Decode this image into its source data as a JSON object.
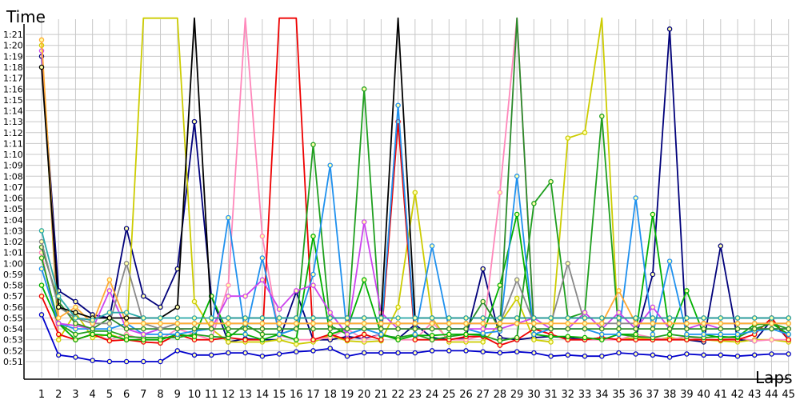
{
  "chart_data": {
    "type": "line",
    "title": "",
    "xlabel": "Laps",
    "ylabel": "Time",
    "grid": true,
    "legend": "none",
    "ylim_seconds": [
      50,
      82.5
    ],
    "x": [
      1,
      2,
      3,
      4,
      5,
      6,
      7,
      8,
      9,
      10,
      11,
      12,
      13,
      14,
      15,
      16,
      17,
      18,
      19,
      20,
      21,
      22,
      23,
      24,
      25,
      26,
      27,
      28,
      29,
      30,
      31,
      32,
      33,
      34,
      35,
      36,
      37,
      38,
      39,
      40,
      41,
      42,
      43,
      44,
      45
    ],
    "x_tick_labels": [
      "1",
      "2",
      "3",
      "4",
      "5",
      "6",
      "7",
      "8",
      "9",
      "10",
      "11",
      "12",
      "13",
      "14",
      "15",
      "16",
      "17",
      "18",
      "19",
      "20",
      "21",
      "22",
      "23",
      "24",
      "25",
      "26",
      "27",
      "28",
      "29",
      "30",
      "31",
      "32",
      "33",
      "34",
      "35",
      "36",
      "37",
      "38",
      "39",
      "40",
      "41",
      "42",
      "43",
      "44",
      "45"
    ],
    "y_tick_labels": [
      "0:51",
      "0:52",
      "0:53",
      "0:54",
      "0:55",
      "0:56",
      "0:57",
      "0:58",
      "0:59",
      "1:00",
      "1:01",
      "1:02",
      "1:03",
      "1:04",
      "1:05",
      "1:06",
      "1:07",
      "1:08",
      "1:09",
      "1:10",
      "1:11",
      "1:12",
      "1:13",
      "1:14",
      "1:15",
      "1:16",
      "1:17",
      "1:18",
      "1:19",
      "1:20",
      "1:21"
    ],
    "series": [
      {
        "color": "#0000cc",
        "values": [
          55.3,
          51.6,
          51.4,
          51.1,
          51.0,
          51.0,
          51.0,
          51.0,
          52.0,
          51.6,
          51.6,
          51.8,
          51.8,
          51.5,
          51.7,
          51.9,
          52.0,
          52.2,
          51.5,
          51.8,
          51.8,
          51.8,
          51.8,
          52.0,
          52.0,
          52.0,
          51.9,
          51.8,
          51.9,
          51.8,
          51.5,
          51.6,
          51.5,
          51.5,
          51.8,
          51.7,
          51.6,
          51.4,
          51.7,
          51.6,
          51.6,
          51.5,
          51.6,
          51.7,
          51.7
        ]
      },
      {
        "color": "#00007a",
        "values": [
          79.0,
          57.5,
          56.5,
          55.3,
          55.0,
          63.2,
          57.0,
          56.0,
          59.5,
          73.0,
          57.0,
          52.8,
          53.1,
          53.0,
          53.0,
          57.4,
          53.0,
          53.0,
          53.3,
          53.1,
          53.5,
          53.1,
          54.4,
          53.2,
          53.0,
          53.2,
          59.5,
          53.2,
          53.0,
          53.2,
          53.3,
          53.2,
          53.0,
          53.2,
          53.0,
          53.2,
          59.0,
          81.5,
          53.0,
          52.8,
          61.6,
          53.0,
          52.9,
          54.8,
          53.0
        ]
      },
      {
        "color": "#cccc00",
        "values": [
          80.0,
          53.0,
          55.5,
          53.2,
          53.5,
          53.0,
          82.5,
          82.5,
          82.5,
          56.5,
          54.0,
          52.8,
          52.8,
          52.8,
          53.0,
          52.6,
          52.8,
          53.4,
          52.9,
          52.8,
          52.9,
          56.0,
          66.5,
          55.0,
          52.8,
          52.8,
          52.8,
          54.5,
          56.8,
          53.0,
          52.8,
          71.5,
          72.0,
          82.5,
          53.0,
          53.2,
          53.0,
          53.2,
          53.0,
          53.0,
          52.9,
          52.8,
          53.0,
          53.0,
          52.8
        ]
      },
      {
        "color": "#ff88bb",
        "values": [
          61.0,
          53.5,
          53.0,
          53.5,
          53.0,
          53.5,
          53.0,
          53.0,
          54.0,
          53.5,
          53.0,
          58.0,
          82.5,
          62.5,
          53.4,
          53.0,
          53.0,
          53.2,
          54.0,
          53.0,
          53.5,
          53.0,
          53.0,
          54.6,
          53.0,
          53.0,
          53.4,
          66.5,
          82.5,
          54.0,
          53.5,
          53.0,
          53.0,
          53.0,
          53.0,
          53.5,
          53.2,
          53.0,
          53.3,
          53.0,
          53.0,
          53.2,
          52.9,
          53.0,
          53.0
        ]
      },
      {
        "color": "#ee0000",
        "values": [
          57.0,
          53.5,
          53.0,
          53.5,
          52.9,
          53.0,
          52.8,
          52.7,
          53.5,
          53.0,
          53.0,
          53.2,
          53.0,
          53.0,
          82.5,
          82.5,
          53.0,
          53.5,
          53.0,
          53.5,
          53.0,
          73.0,
          53.0,
          53.0,
          53.0,
          53.3,
          53.3,
          52.5,
          53.0,
          54.0,
          53.5,
          53.0,
          53.0,
          53.2,
          53.0,
          53.0,
          53.0,
          53.0,
          53.0,
          53.0,
          53.0,
          53.0,
          53.5,
          55.0,
          53.0
        ]
      },
      {
        "color": "#1f9f1f",
        "values": [
          60.5,
          54.5,
          53.5,
          53.8,
          53.8,
          53.3,
          53.2,
          53.2,
          53.2,
          53.5,
          53.3,
          53.2,
          54.4,
          53.5,
          53.5,
          54.0,
          70.9,
          54.3,
          53.5,
          76.0,
          53.4,
          53.2,
          53.5,
          53.0,
          53.3,
          53.5,
          53.4,
          52.9,
          53.2,
          65.5,
          67.5,
          55.0,
          55.5,
          73.5,
          53.5,
          53.3,
          53.2,
          53.5,
          53.3,
          53.2,
          53.3,
          53.2,
          54.0,
          54.5,
          54.0
        ]
      },
      {
        "color": "#00b000",
        "values": [
          58.0,
          54.5,
          53.0,
          53.5,
          53.4,
          53.0,
          53.0,
          53.0,
          53.5,
          53.3,
          57.0,
          53.5,
          53.5,
          53.0,
          53.5,
          53.0,
          62.5,
          53.5,
          54.0,
          58.5,
          53.5,
          53.0,
          53.4,
          53.4,
          53.5,
          53.5,
          53.5,
          58.0,
          64.5,
          53.5,
          53.3,
          53.3,
          53.2,
          53.0,
          53.5,
          53.5,
          64.5,
          53.5,
          57.5,
          53.5,
          53.2,
          53.3,
          54.4,
          54.5,
          53.5
        ]
      },
      {
        "color": "#1e90ee",
        "values": [
          59.5,
          54.5,
          54.0,
          54.0,
          54.0,
          54.5,
          53.5,
          53.5,
          53.5,
          53.8,
          54.0,
          64.2,
          53.5,
          60.5,
          53.5,
          54.0,
          59.0,
          69.0,
          53.5,
          54.0,
          53.5,
          74.5,
          53.5,
          61.6,
          54.0,
          54.0,
          53.6,
          53.8,
          68.0,
          53.5,
          54.0,
          54.0,
          54.0,
          53.5,
          53.5,
          66.0,
          53.5,
          60.2,
          53.5,
          53.5,
          53.5,
          53.5,
          53.8,
          54.0,
          53.5
        ]
      },
      {
        "color": "#cc44ee",
        "values": [
          79.5,
          54.5,
          54.3,
          54.0,
          57.5,
          54.0,
          53.5,
          54.0,
          54.0,
          54.0,
          54.0,
          57.0,
          57.0,
          58.5,
          55.8,
          57.5,
          58.0,
          55.5,
          53.5,
          63.8,
          55.5,
          54.0,
          54.0,
          54.0,
          54.0,
          54.0,
          54.0,
          54.0,
          54.5,
          55.0,
          54.0,
          54.0,
          55.5,
          54.0,
          55.5,
          54.0,
          56.0,
          54.0,
          54.0,
          54.5,
          54.0,
          54.0,
          54.0,
          54.0,
          54.0
        ]
      },
      {
        "color": "#2a8a2a",
        "values": [
          61.5,
          56.5,
          54.5,
          54.0,
          55.0,
          54.0,
          54.0,
          54.0,
          54.0,
          54.0,
          54.0,
          54.0,
          54.0,
          54.0,
          54.0,
          54.0,
          54.0,
          54.0,
          54.0,
          54.0,
          54.0,
          54.0,
          54.0,
          54.0,
          54.0,
          54.0,
          56.5,
          54.0,
          82.5,
          54.0,
          54.0,
          54.0,
          54.0,
          54.0,
          54.0,
          54.0,
          54.0,
          54.0,
          54.0,
          54.0,
          54.0,
          54.0,
          54.0,
          54.0,
          54.0
        ]
      },
      {
        "color": "#888888",
        "values": [
          62.0,
          56.0,
          55.0,
          54.5,
          54.5,
          60.0,
          54.5,
          54.0,
          54.5,
          54.5,
          54.5,
          54.5,
          54.5,
          54.5,
          54.5,
          54.5,
          54.5,
          54.5,
          54.5,
          54.5,
          54.5,
          54.5,
          54.5,
          54.5,
          54.5,
          54.5,
          54.5,
          54.5,
          58.5,
          54.5,
          54.5,
          60.0,
          54.5,
          54.5,
          54.5,
          54.5,
          54.5,
          54.5,
          54.5,
          54.5,
          54.5,
          54.5,
          54.5,
          54.5,
          54.5
        ]
      },
      {
        "color": "#ffaa33",
        "values": [
          80.5,
          55.0,
          56.0,
          54.5,
          58.5,
          54.5,
          54.5,
          54.5,
          54.5,
          54.5,
          54.5,
          54.5,
          54.5,
          54.5,
          54.5,
          54.5,
          54.5,
          54.5,
          54.5,
          54.5,
          54.5,
          54.5,
          54.5,
          54.5,
          54.5,
          54.5,
          54.5,
          54.5,
          54.5,
          54.5,
          54.5,
          54.5,
          54.5,
          54.5,
          57.5,
          54.5,
          54.5,
          54.5,
          54.5,
          54.5,
          54.5,
          54.5,
          54.5,
          54.5,
          54.5
        ]
      },
      {
        "color": "#000000",
        "values": [
          78.0,
          56.0,
          55.5,
          55.0,
          55.0,
          55.0,
          55.0,
          55.0,
          56.0,
          82.5,
          55.0,
          55.0,
          55.0,
          55.0,
          55.0,
          55.0,
          55.0,
          55.0,
          55.0,
          55.0,
          55.0,
          82.5,
          55.0,
          55.0,
          55.0,
          55.0,
          55.0,
          55.0,
          55.0,
          55.0,
          55.0,
          55.0,
          55.0,
          55.0,
          55.0,
          55.0,
          55.0,
          55.0,
          55.0,
          55.0,
          55.0,
          55.0,
          55.0,
          55.0,
          55.0
        ]
      },
      {
        "color": "#2aa8a8",
        "values": [
          63.0,
          57.0,
          55.0,
          54.8,
          55.5,
          55.5,
          55.0,
          55.0,
          55.0,
          55.0,
          55.0,
          55.0,
          55.0,
          55.0,
          55.0,
          55.0,
          55.0,
          55.0,
          55.0,
          55.0,
          55.0,
          55.0,
          55.0,
          55.0,
          55.0,
          55.0,
          55.0,
          55.0,
          55.0,
          55.0,
          55.0,
          55.0,
          55.0,
          55.0,
          55.0,
          55.0,
          55.0,
          55.0,
          55.0,
          55.0,
          55.0,
          55.0,
          55.0,
          55.0,
          55.0
        ]
      }
    ]
  }
}
